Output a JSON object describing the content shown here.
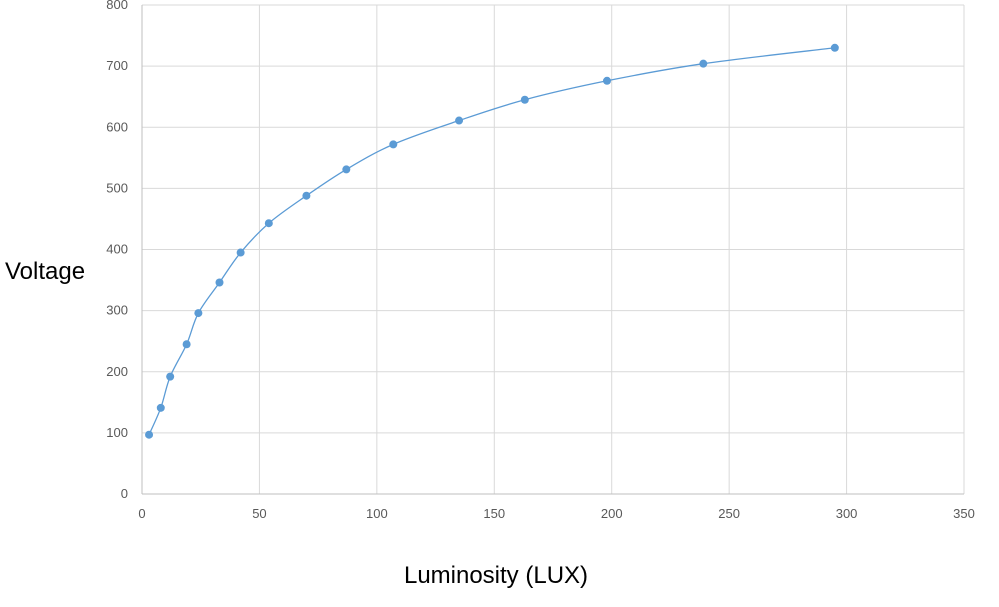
{
  "chart_data": {
    "type": "scatter",
    "title": "",
    "xlabel": "Luminosity (LUX)",
    "ylabel": "Voltage",
    "xlim": [
      0,
      350
    ],
    "ylim": [
      0,
      800
    ],
    "xticks": [
      0,
      50,
      100,
      150,
      200,
      250,
      300,
      350
    ],
    "yticks": [
      0,
      100,
      200,
      300,
      400,
      500,
      600,
      700,
      800
    ],
    "grid": true,
    "legend": "none",
    "lines": "smooth",
    "series": [
      {
        "color": "#5B9BD5",
        "x": [
          3,
          8,
          12,
          19,
          24,
          33,
          42,
          54,
          70,
          87,
          107,
          135,
          163,
          198,
          239,
          295
        ],
        "y": [
          97,
          141,
          192,
          245,
          296,
          346,
          395,
          443,
          488,
          531,
          572,
          611,
          645,
          676,
          704,
          730
        ]
      }
    ]
  }
}
